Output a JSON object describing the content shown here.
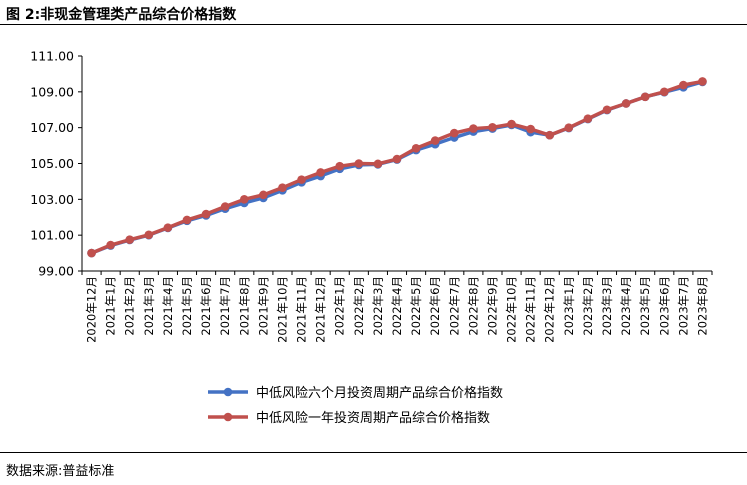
{
  "figure": {
    "title": "图 2:非现金管理类产品综合价格指数",
    "source": "数据来源:普益标准"
  },
  "chart_data": {
    "type": "line",
    "title": "",
    "xlabel": "",
    "ylabel": "",
    "ylim": [
      99.0,
      111.0
    ],
    "yticks": [
      99.0,
      101.0,
      103.0,
      105.0,
      107.0,
      109.0,
      111.0
    ],
    "ytick_labels": [
      "99.00",
      "101.00",
      "103.00",
      "105.00",
      "107.00",
      "109.00",
      "111.00"
    ],
    "grid": false,
    "legend_position": "bottom",
    "categories": [
      "2020年12月",
      "2021年1月",
      "2021年2月",
      "2021年3月",
      "2021年4月",
      "2021年5月",
      "2021年6月",
      "2021年7月",
      "2021年8月",
      "2021年9月",
      "2021年10月",
      "2021年11月",
      "2021年12月",
      "2022年1月",
      "2022年2月",
      "2022年3月",
      "2022年4月",
      "2022年5月",
      "2022年6月",
      "2022年7月",
      "2022年8月",
      "2022年9月",
      "2022年10月",
      "2022年11月",
      "2022年12月",
      "2023年1月",
      "2023年2月",
      "2023年3月",
      "2023年4月",
      "2023年5月",
      "2023年6月",
      "2023年7月",
      "2023年8月"
    ],
    "series": [
      {
        "name": "中低风险六个月投资周期产品综合价格指数",
        "color": "#4472C4",
        "values": [
          100.0,
          100.42,
          100.73,
          101.0,
          101.4,
          101.8,
          102.1,
          102.48,
          102.8,
          103.08,
          103.5,
          103.95,
          104.3,
          104.7,
          104.92,
          104.95,
          105.22,
          105.75,
          106.08,
          106.45,
          106.78,
          106.95,
          107.15,
          106.75,
          106.58,
          106.98,
          107.48,
          107.98,
          108.35,
          108.72,
          108.98,
          109.25,
          109.55
        ]
      },
      {
        "name": "中低风险一年投资周期产品综合价格指数",
        "color": "#C0504D",
        "values": [
          100.0,
          100.45,
          100.75,
          101.02,
          101.42,
          101.85,
          102.18,
          102.6,
          103.0,
          103.25,
          103.65,
          104.1,
          104.5,
          104.85,
          105.0,
          104.98,
          105.25,
          105.85,
          106.28,
          106.7,
          106.95,
          107.02,
          107.2,
          106.92,
          106.58,
          107.0,
          107.5,
          108.0,
          108.35,
          108.72,
          109.0,
          109.38,
          109.58
        ]
      }
    ]
  }
}
